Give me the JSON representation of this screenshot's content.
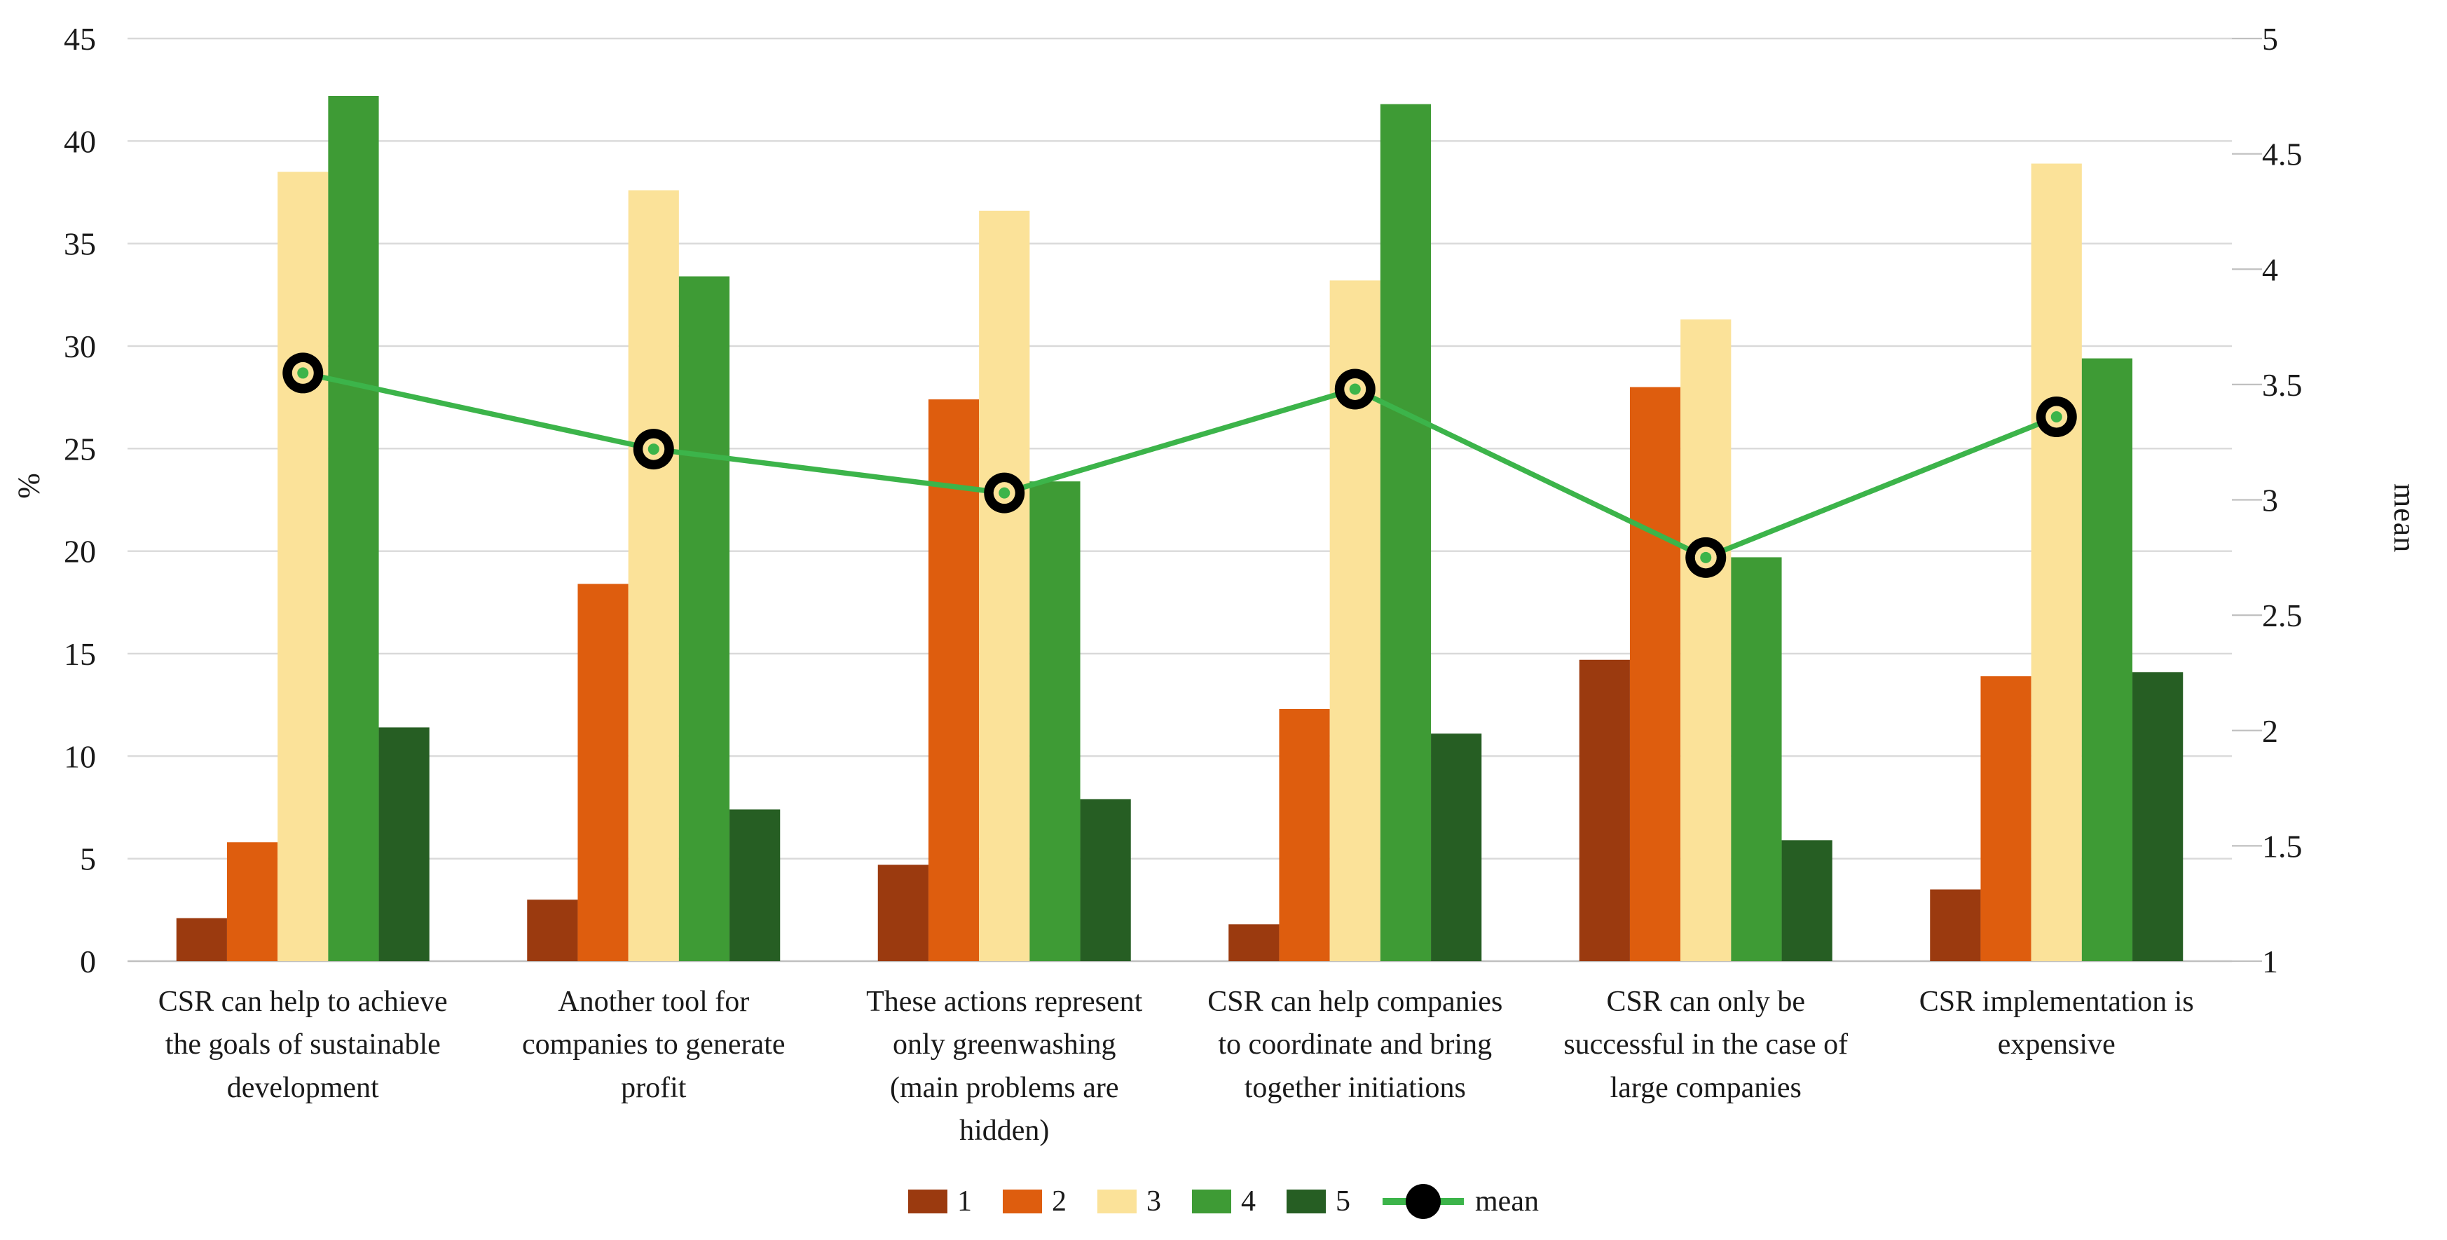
{
  "chart_data": {
    "type": "bar",
    "subtype": "grouped-bars-with-line-overlay",
    "title": "",
    "grid": true,
    "left_axis": {
      "label": "%",
      "min": 0,
      "max": 45,
      "step": 5,
      "tick_labels": [
        "0",
        "5",
        "10",
        "15",
        "20",
        "25",
        "30",
        "35",
        "40",
        "45"
      ]
    },
    "right_axis": {
      "label": "mean",
      "min": 1,
      "max": 5,
      "step": 0.5,
      "tick_labels": [
        "1",
        "1.5",
        "2",
        "2.5",
        "3",
        "3.5",
        "4",
        "4.5",
        "5"
      ]
    },
    "categories": [
      "CSR can help to achieve\nthe goals of sustainable\ndevelopment",
      "Another tool for\ncompanies to generate\nprofit",
      "These actions represent\nonly greenwashing\n(main problems are\nhidden)",
      "CSR can help companies\nto coordinate and bring\ntogether initiations",
      "CSR can only be\nsuccessful in the case of\nlarge companies",
      "CSR implementation is\nexpensive"
    ],
    "series": [
      {
        "name": "1",
        "color": "#9B3A0F",
        "values": [
          2.1,
          3.0,
          4.7,
          1.8,
          14.7,
          3.5
        ]
      },
      {
        "name": "2",
        "color": "#DE5D0E",
        "values": [
          5.8,
          18.4,
          27.4,
          12.3,
          28.0,
          13.9
        ]
      },
      {
        "name": "3",
        "color": "#FBE299",
        "values": [
          38.5,
          37.6,
          36.6,
          33.2,
          31.3,
          38.9
        ]
      },
      {
        "name": "4",
        "color": "#3E9B35",
        "values": [
          42.2,
          33.4,
          23.4,
          41.8,
          19.7,
          29.4
        ]
      },
      {
        "name": "5",
        "color": "#265E23",
        "values": [
          11.4,
          7.4,
          7.9,
          11.1,
          5.9,
          14.1
        ]
      }
    ],
    "mean_series": {
      "name": "mean",
      "line_color": "#3CB44A",
      "marker_outer_color": "#000000",
      "marker_dot_color": "#3CB44A",
      "values": [
        3.55,
        3.22,
        3.03,
        3.48,
        2.75,
        3.36
      ]
    },
    "legend_labels": [
      "1",
      "2",
      "3",
      "4",
      "5",
      "mean"
    ],
    "layout_hints": {
      "legend_position": "bottom-center",
      "gridline_color": "#D9D9D9",
      "axis_line_color": "#C0C0C0",
      "text_color": "#1a1a1a"
    }
  }
}
